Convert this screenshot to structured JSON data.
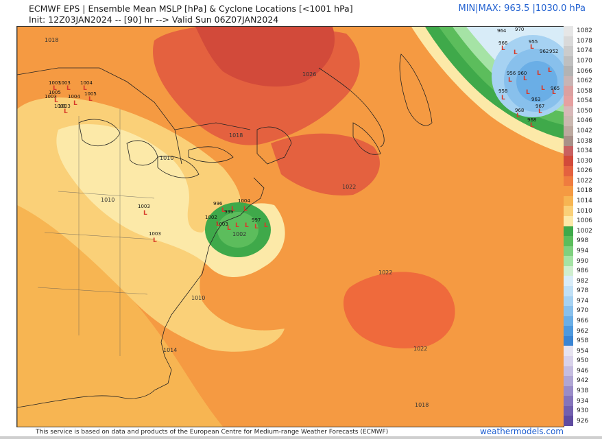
{
  "header": {
    "title": "ECMWF EPS | Ensemble Mean MSLP [hPa] & Cyclone Locations [<1001 hPa]",
    "subtitle": "Init: 12Z03JAN2024 -- [90] hr --> Valid Sun 06Z07JAN2024",
    "minmax": "MIN|MAX: 963.5 |1030.0 hPa"
  },
  "footer": {
    "credit": "This service is based on data and products of the European Centre for Medium-range Weather Forecasts (ECMWF)",
    "brand": "weathermodels.com"
  },
  "colorbar": {
    "labels": [
      "1082",
      "1078",
      "1074",
      "1070",
      "1066",
      "1062",
      "1058",
      "1054",
      "1050",
      "1046",
      "1042",
      "1038",
      "1034",
      "1030",
      "1026",
      "1022",
      "1018",
      "1014",
      "1010",
      "1006",
      "1002",
      "998",
      "994",
      "990",
      "986",
      "982",
      "978",
      "974",
      "970",
      "966",
      "962",
      "958",
      "954",
      "950",
      "946",
      "942",
      "938",
      "934",
      "930",
      "926"
    ],
    "colors": [
      "#e6e6e6",
      "#d9d9d9",
      "#cccccc",
      "#bfbfbf",
      "#b3b3b3",
      "#c8b4b4",
      "#dca0a0",
      "#e6a0a0",
      "#d8b8b8",
      "#cbb8b0",
      "#bda99f",
      "#a89088",
      "#c86060",
      "#d24a3a",
      "#e4613f",
      "#ef7c3f",
      "#f59a42",
      "#f7b552",
      "#fad078",
      "#fce9a8",
      "#3fa94a",
      "#5cbd5c",
      "#7fd07f",
      "#a5e3a5",
      "#cfeecf",
      "#d8ecf8",
      "#c0e0f6",
      "#a6d2f2",
      "#88c0ec",
      "#6aaee6",
      "#4e99de",
      "#3a85d4",
      "#e6e3f0",
      "#d8d2ea",
      "#c5bde0",
      "#b0a6d4",
      "#9a8cc8",
      "#8574bb",
      "#725fae",
      "#5f4ba0"
    ]
  },
  "map": {
    "contour_labels": [
      {
        "text": "1018",
        "id": "c-1018-nw"
      },
      {
        "text": "1026",
        "id": "c-1026-quebec"
      },
      {
        "text": "1018",
        "id": "c-1018-maine"
      },
      {
        "text": "1010",
        "id": "c-1010-lakes"
      },
      {
        "text": "1010",
        "id": "c-1010-ohio"
      },
      {
        "text": "1022",
        "id": "c-1022-atl-n"
      },
      {
        "text": "1002",
        "id": "c-1002-low"
      },
      {
        "text": "1022",
        "id": "c-1022-high"
      },
      {
        "text": "1010",
        "id": "c-1010-se"
      },
      {
        "text": "1014",
        "id": "c-1014-fl"
      },
      {
        "text": "1022",
        "id": "c-1022-s"
      },
      {
        "text": "1018",
        "id": "c-1018-s"
      }
    ],
    "cyclone_labels": [
      {
        "text": "1003",
        "id": "cy-lk1"
      },
      {
        "text": "1003",
        "id": "cy-lk2"
      },
      {
        "text": "1004",
        "id": "cy-lk3"
      },
      {
        "text": "1005",
        "id": "cy-lk4"
      },
      {
        "text": "1003",
        "id": "cy-lk5"
      },
      {
        "text": "1005",
        "id": "cy-lk6"
      },
      {
        "text": "1004",
        "id": "cy-lk7"
      },
      {
        "text": "1003",
        "id": "cy-lk8"
      },
      {
        "text": "1001",
        "id": "cy-lk9"
      },
      {
        "text": "1003",
        "id": "cy-oh"
      },
      {
        "text": "1003",
        "id": "cy-va"
      },
      {
        "text": "997",
        "id": "cy-ec1"
      },
      {
        "text": "996",
        "id": "cy-ec2"
      },
      {
        "text": "1004",
        "id": "cy-ec3"
      },
      {
        "text": "999",
        "id": "cy-ec4"
      },
      {
        "text": "1003",
        "id": "cy-ec5"
      },
      {
        "text": "1002",
        "id": "cy-ec6"
      },
      {
        "text": "964",
        "id": "cy-n1"
      },
      {
        "text": "970",
        "id": "cy-n2"
      },
      {
        "text": "966",
        "id": "cy-n3"
      },
      {
        "text": "955",
        "id": "cy-n4"
      },
      {
        "text": "962",
        "id": "cy-n5"
      },
      {
        "text": "952",
        "id": "cy-n6"
      },
      {
        "text": "956",
        "id": "cy-n7"
      },
      {
        "text": "960",
        "id": "cy-n8"
      },
      {
        "text": "958",
        "id": "cy-n9"
      },
      {
        "text": "965",
        "id": "cy-n10"
      },
      {
        "text": "968",
        "id": "cy-n11"
      },
      {
        "text": "967",
        "id": "cy-n12"
      },
      {
        "text": "968",
        "id": "cy-n13"
      },
      {
        "text": "963",
        "id": "cy-n14"
      }
    ]
  }
}
